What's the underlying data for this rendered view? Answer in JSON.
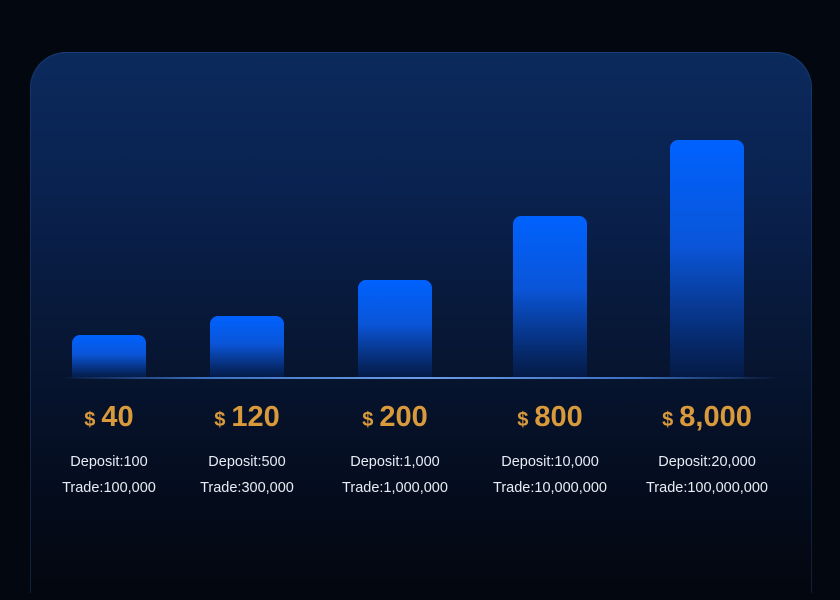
{
  "chart_data": {
    "type": "bar",
    "currency_symbol": "$",
    "categories": [
      "Deposit:100",
      "Deposit:500",
      "Deposit:1,000",
      "Deposit:10,000",
      "Deposit:20,000"
    ],
    "values": [
      40,
      120,
      200,
      800,
      8000
    ],
    "items": [
      {
        "reward": "40",
        "deposit": "Deposit:100",
        "trade": "Trade:100,000"
      },
      {
        "reward": "120",
        "deposit": "Deposit:500",
        "trade": "Trade:300,000"
      },
      {
        "reward": "200",
        "deposit": "Deposit:1,000",
        "trade": "Trade:1,000,000"
      },
      {
        "reward": "800",
        "deposit": "Deposit:10,000",
        "trade": "Trade:10,000,000"
      },
      {
        "reward": "8,000",
        "deposit": "Deposit:20,000",
        "trade": "Trade:100,000,000"
      }
    ],
    "grid": false,
    "colors": {
      "bar": "#0062ff",
      "amount": "#d99a3c",
      "text": "#e8ecf4",
      "background": "#03070f"
    }
  }
}
